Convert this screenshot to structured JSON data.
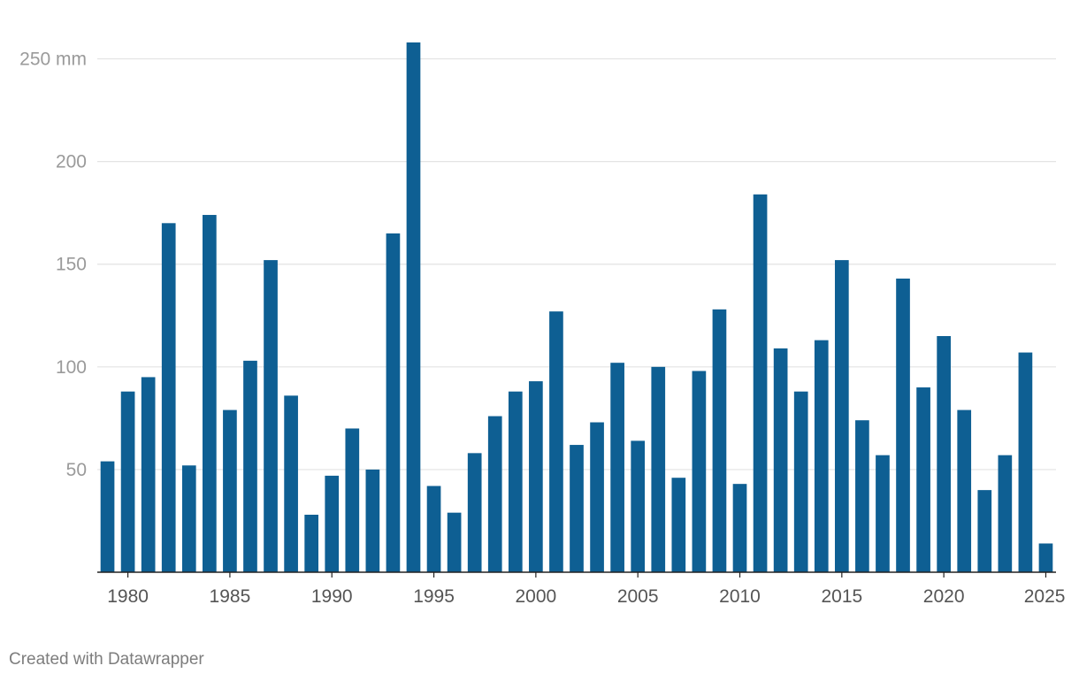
{
  "chart_data": {
    "type": "bar",
    "x": [
      1979,
      1980,
      1981,
      1982,
      1983,
      1984,
      1985,
      1986,
      1987,
      1988,
      1989,
      1990,
      1991,
      1992,
      1993,
      1994,
      1995,
      1996,
      1997,
      1998,
      1999,
      2000,
      2001,
      2002,
      2003,
      2004,
      2005,
      2006,
      2007,
      2008,
      2009,
      2010,
      2011,
      2012,
      2013,
      2014,
      2015,
      2016,
      2017,
      2018,
      2019,
      2020,
      2021,
      2022,
      2023,
      2024,
      2025
    ],
    "values": [
      54,
      88,
      95,
      170,
      52,
      174,
      79,
      103,
      152,
      86,
      28,
      47,
      70,
      50,
      165,
      258,
      42,
      29,
      58,
      76,
      88,
      93,
      127,
      62,
      73,
      102,
      64,
      100,
      46,
      98,
      128,
      43,
      184,
      109,
      88,
      113,
      152,
      74,
      57,
      143,
      90,
      115,
      79,
      40,
      57,
      107,
      14
    ],
    "color": "#0e5f93",
    "ylim": [
      0,
      258
    ],
    "y_ticks": [
      {
        "value": 50,
        "label": "50"
      },
      {
        "value": 100,
        "label": "100"
      },
      {
        "value": 150,
        "label": "150"
      },
      {
        "value": 200,
        "label": "200"
      },
      {
        "value": 250,
        "label": "250 mm"
      }
    ],
    "x_ticks": [
      1980,
      1985,
      1990,
      1995,
      2000,
      2005,
      2010,
      2015,
      2020,
      2025
    ],
    "x_tick_labels": [
      "1980",
      "1985",
      "1990",
      "1995",
      "2000",
      "2005",
      "2010",
      "2015",
      "2020",
      "2025"
    ],
    "grid": true
  },
  "footer": {
    "credit": "Created with Datawrapper"
  }
}
